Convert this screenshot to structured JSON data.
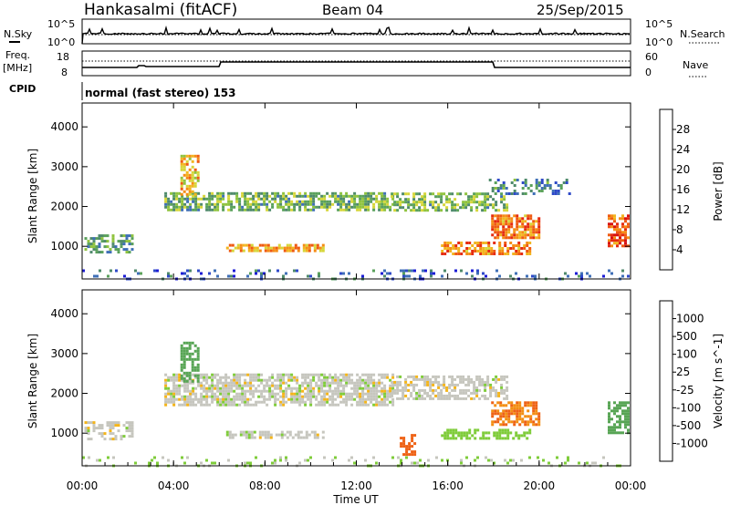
{
  "header": {
    "station": "Hankasalmi (fitACF)",
    "beam": "Beam 04",
    "date": "25/Sep/2015"
  },
  "strip_labels": {
    "nsky": "N.Sky",
    "nsky_hi": "10^5",
    "nsky_lo": "10^0",
    "nsearch": "N.Search",
    "nsearch_hi": "10^5",
    "nsearch_lo": "10^0",
    "freq_line1": "Freq.",
    "freq_unit": "[MHz]",
    "freq_hi": "18",
    "freq_lo": "8",
    "nave": "Nave",
    "nave_hi": "60",
    "nave_lo": "0",
    "cpid": "CPID",
    "cpid_value": "normal (fast stereo) 153"
  },
  "colors": {
    "power": [
      "#1b1bd4",
      "#2e49c8",
      "#3f6fb7",
      "#4f8a6b",
      "#5aa15b",
      "#8fc33e",
      "#d6d63a",
      "#f2b51f",
      "#f58d16",
      "#ef5a12",
      "#e52b10",
      "#d81010"
    ],
    "velocity": [
      "#2443b5",
      "#3a62b0",
      "#4d8c6a",
      "#58a555",
      "#7fcc3a",
      "#c6c6be",
      "#c6c6be",
      "#f4b51a",
      "#f38e13",
      "#ee6215",
      "#e53818",
      "#d81010"
    ]
  },
  "chart_data": [
    {
      "type": "heatmap",
      "panel": "power",
      "ylabel": "Slant Range [km]",
      "ylim": [
        180,
        4600
      ],
      "yticks": [
        "1000",
        "2000",
        "3000",
        "4000"
      ],
      "colorbar_label": "Power [dB]",
      "colorbar_ticks": [
        "4",
        "8",
        "12",
        "16",
        "20",
        "24",
        "28"
      ],
      "colorbar_range": [
        0,
        30
      ],
      "regions": [
        {
          "t0": 0.1,
          "t1": 2.2,
          "r0": 860,
          "r1": 1300,
          "v": 10,
          "d": 0.55
        },
        {
          "t0": 0.0,
          "t1": 23.9,
          "r0": 200,
          "r1": 420,
          "v": 6,
          "d": 0.18
        },
        {
          "t0": 3.6,
          "t1": 13.6,
          "r0": 1920,
          "r1": 2360,
          "v": 12,
          "d": 0.7
        },
        {
          "t0": 4.3,
          "t1": 5.1,
          "r0": 2300,
          "r1": 3300,
          "v": 18,
          "d": 0.6
        },
        {
          "t0": 13.5,
          "t1": 18.6,
          "r0": 1900,
          "r1": 2350,
          "v": 12,
          "d": 0.6
        },
        {
          "t0": 17.9,
          "t1": 20.0,
          "r0": 1200,
          "r1": 1800,
          "v": 22,
          "d": 0.7
        },
        {
          "t0": 15.7,
          "t1": 19.6,
          "r0": 780,
          "r1": 1120,
          "v": 22,
          "d": 0.65
        },
        {
          "t0": 6.3,
          "t1": 10.5,
          "r0": 900,
          "r1": 1060,
          "v": 20,
          "d": 0.7
        },
        {
          "t0": 23.0,
          "t1": 23.9,
          "r0": 1000,
          "r1": 1800,
          "v": 24,
          "d": 0.7
        },
        {
          "t0": 17.8,
          "t1": 21.3,
          "r0": 2300,
          "r1": 2700,
          "v": 8,
          "d": 0.3
        }
      ]
    },
    {
      "type": "heatmap",
      "panel": "velocity",
      "ylabel": "Slant Range [km]",
      "ylim": [
        180,
        4600
      ],
      "yticks": [
        "1000",
        "2000",
        "3000",
        "4000"
      ],
      "xlabel": "Time UT",
      "xticks": [
        "00:00",
        "04:00",
        "08:00",
        "12:00",
        "16:00",
        "20:00",
        "00:00"
      ],
      "xlim": [
        0,
        24
      ],
      "colorbar_label": "Velocity [m s^-1]",
      "colorbar_ticks": [
        "1000",
        "500",
        "100",
        "25",
        "-25",
        "-100",
        "-500",
        "-1000"
      ],
      "regions": [
        {
          "t0": 0.1,
          "t1": 2.2,
          "r0": 860,
          "r1": 1300,
          "v": 0,
          "d": 0.55
        },
        {
          "t0": 0.0,
          "t1": 23.9,
          "r0": 200,
          "r1": 420,
          "v": 30,
          "d": 0.12
        },
        {
          "t0": 3.6,
          "t1": 13.6,
          "r0": 1720,
          "r1": 2500,
          "v": 0,
          "d": 0.7
        },
        {
          "t0": 4.3,
          "t1": 5.1,
          "r0": 2300,
          "r1": 3300,
          "v": 150,
          "d": 0.55
        },
        {
          "t0": 13.5,
          "t1": 18.6,
          "r0": 1850,
          "r1": 2450,
          "v": 0,
          "d": 0.6
        },
        {
          "t0": 17.9,
          "t1": 20.0,
          "r0": 1200,
          "r1": 1800,
          "v": -300,
          "d": 0.7
        },
        {
          "t0": 15.7,
          "t1": 19.6,
          "r0": 840,
          "r1": 1110,
          "v": 60,
          "d": 0.6
        },
        {
          "t0": 6.3,
          "t1": 10.5,
          "r0": 900,
          "r1": 1060,
          "v": 0,
          "d": 0.55
        },
        {
          "t0": 23.0,
          "t1": 23.9,
          "r0": 1000,
          "r1": 1800,
          "v": 200,
          "d": 0.7
        },
        {
          "t0": 13.9,
          "t1": 14.6,
          "r0": 480,
          "r1": 980,
          "v": -400,
          "d": 0.55
        }
      ]
    }
  ]
}
